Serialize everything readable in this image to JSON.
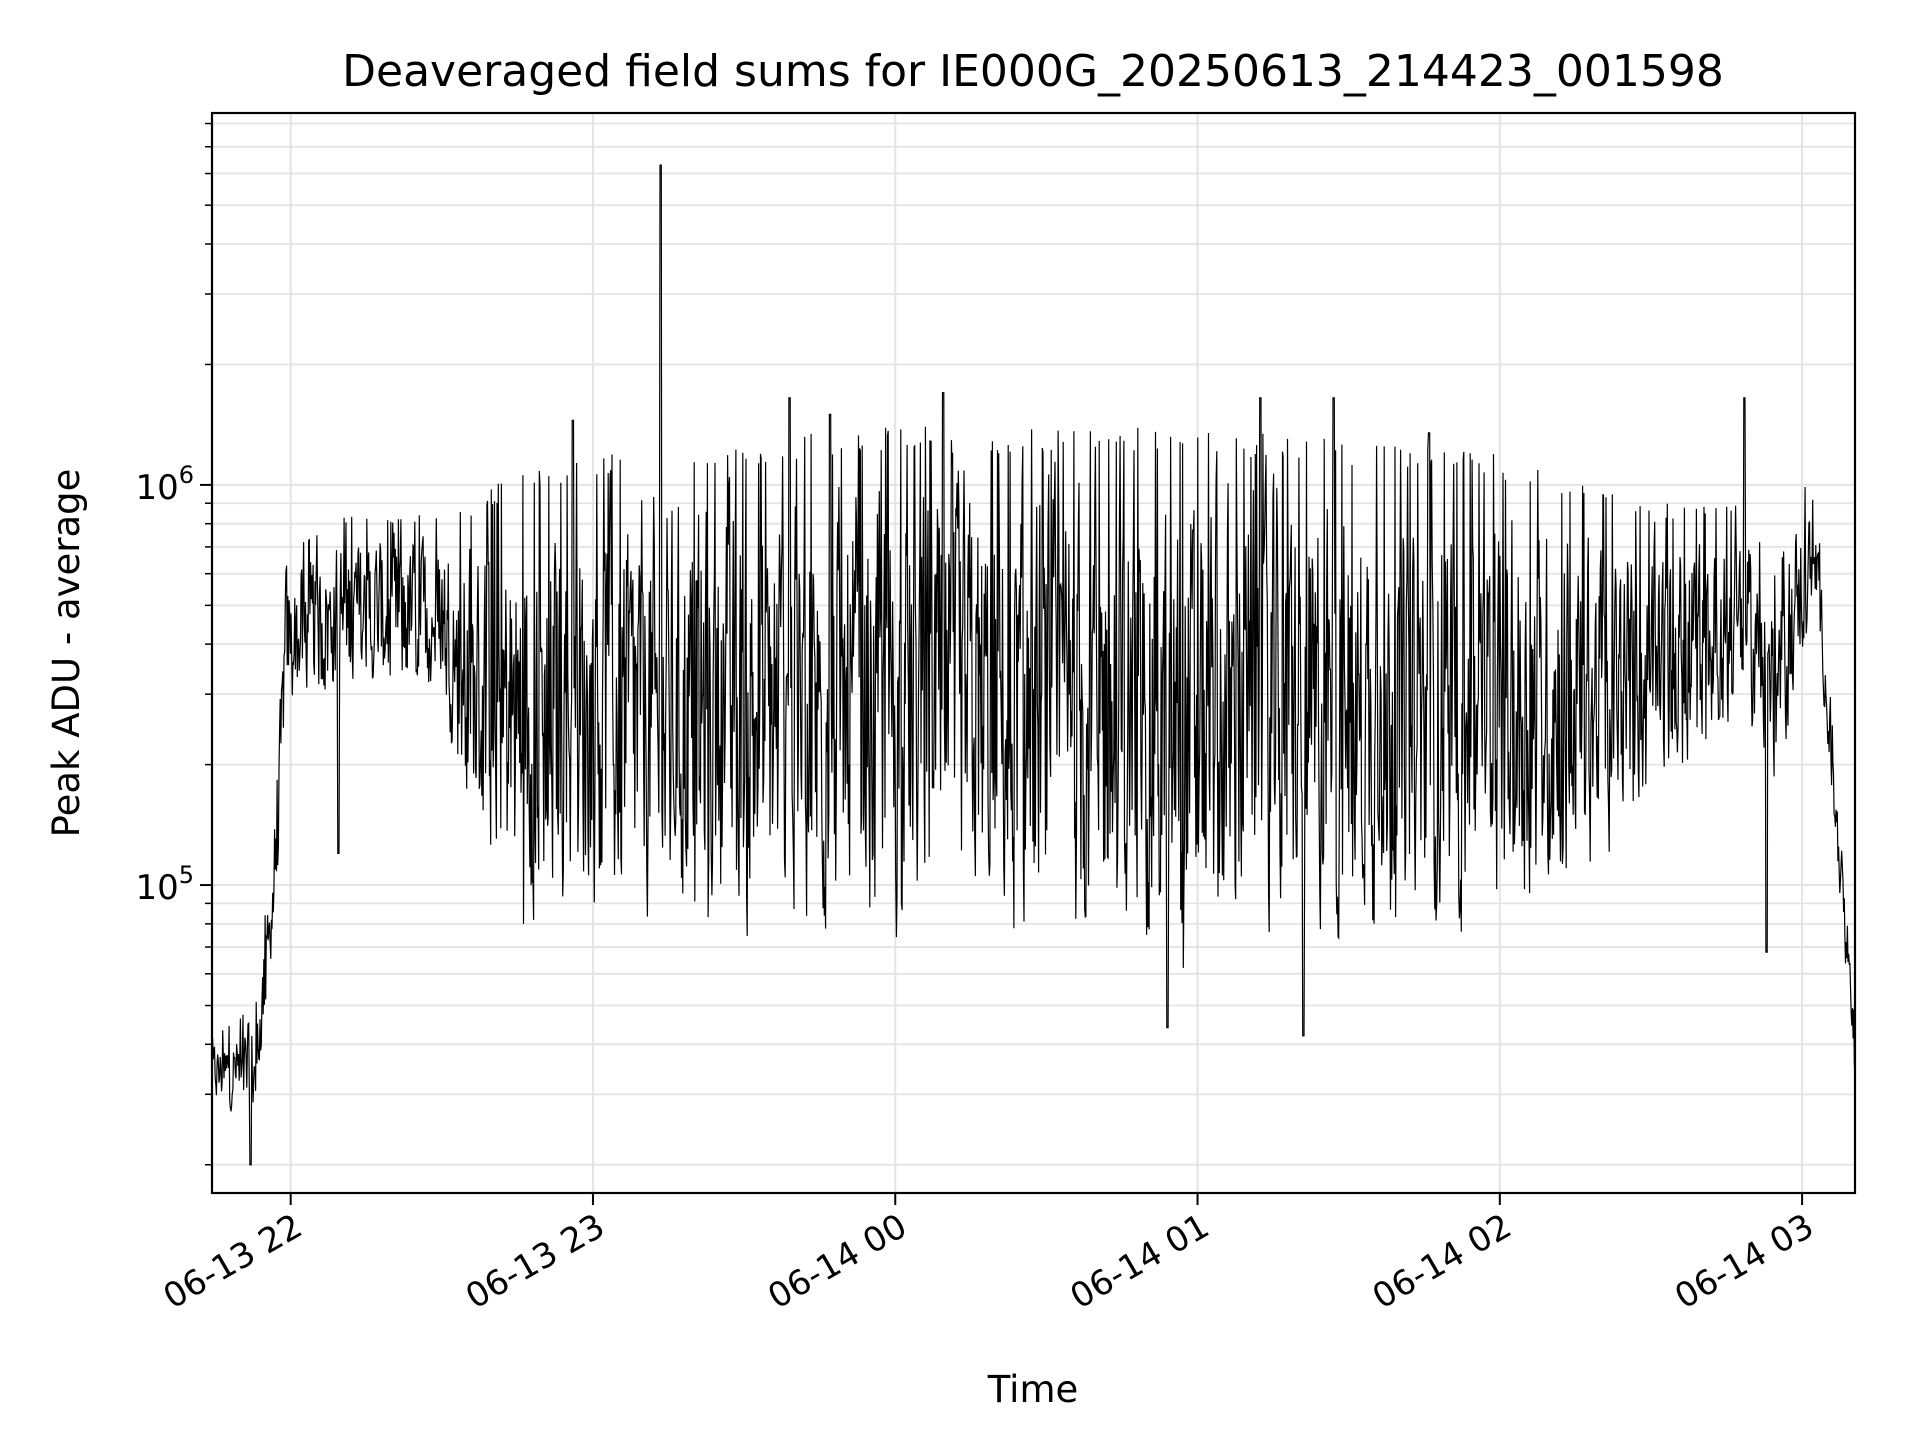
{
  "chart_data": {
    "type": "line",
    "title": "Deaveraged field sums for IE000G_20250613_214423_001598",
    "xlabel": "Time",
    "ylabel": "Peak ADU - average",
    "y_scale": "log",
    "ylim": [
      17000,
      8500000
    ],
    "xlim": [
      "2025-06-13 21:44:23",
      "2025-06-14 03:10:30"
    ],
    "grid": true,
    "line_color": "#000000",
    "grid_color": "#e4e4e4",
    "x_ticks": [
      {
        "value": "2025-06-13 22:00",
        "label": "06-13 22"
      },
      {
        "value": "2025-06-13 23:00",
        "label": "06-13 23"
      },
      {
        "value": "2025-06-14 00:00",
        "label": "06-14 00"
      },
      {
        "value": "2025-06-14 01:00",
        "label": "06-14 01"
      },
      {
        "value": "2025-06-14 02:00",
        "label": "06-14 02"
      },
      {
        "value": "2025-06-14 03:00",
        "label": "06-14 03"
      }
    ],
    "y_ticks": [
      {
        "value": 100000,
        "base": "10",
        "exp": "5"
      },
      {
        "value": 1000000,
        "base": "10",
        "exp": "6"
      }
    ],
    "series": [
      {
        "x_start": "2025-06-13 21:44:23",
        "x_end": "2025-06-14 03:10:30",
        "envelope": [
          {
            "x": "2025-06-13 21:44:23",
            "low": 28000,
            "high": 42000
          },
          {
            "x": "2025-06-13 21:53:00",
            "low": 25000,
            "high": 50000
          },
          {
            "x": "2025-06-13 21:57:00",
            "low": 80000,
            "high": 150000
          },
          {
            "x": "2025-06-13 21:59:00",
            "low": 250000,
            "high": 700000
          },
          {
            "x": "2025-06-13 22:10:00",
            "low": 280000,
            "high": 850000
          },
          {
            "x": "2025-06-13 22:30:00",
            "low": 280000,
            "high": 850000
          },
          {
            "x": "2025-06-13 22:35:00",
            "low": 120000,
            "high": 900000
          },
          {
            "x": "2025-06-13 22:45:00",
            "low": 70000,
            "high": 1100000
          },
          {
            "x": "2025-06-13 23:00:00",
            "low": 70000,
            "high": 1200000
          },
          {
            "x": "2025-06-14 00:00:00",
            "low": 60000,
            "high": 1400000
          },
          {
            "x": "2025-06-14 01:00:00",
            "low": 55000,
            "high": 1400000
          },
          {
            "x": "2025-06-14 02:00:00",
            "low": 65000,
            "high": 1200000
          },
          {
            "x": "2025-06-14 02:30:00",
            "low": 120000,
            "high": 900000
          },
          {
            "x": "2025-06-14 02:48:00",
            "low": 250000,
            "high": 900000
          },
          {
            "x": "2025-06-14 02:55:00",
            "low": 150000,
            "high": 600000
          },
          {
            "x": "2025-06-14 03:00:00",
            "low": 350000,
            "high": 1050000
          },
          {
            "x": "2025-06-14 03:03:00",
            "low": 450000,
            "high": 900000
          },
          {
            "x": "2025-06-14 03:06:00",
            "low": 150000,
            "high": 250000
          },
          {
            "x": "2025-06-14 03:10:30",
            "low": 30000,
            "high": 45000
          }
        ],
        "spikes": [
          {
            "x": "2025-06-13 23:13:30",
            "y": 6300000
          },
          {
            "x": "2025-06-14 00:09:30",
            "y": 1700000
          },
          {
            "x": "2025-06-14 01:12:30",
            "y": 1650000
          },
          {
            "x": "2025-06-14 01:27:00",
            "y": 1650000
          },
          {
            "x": "2025-06-14 02:48:30",
            "y": 1650000
          },
          {
            "x": "2025-06-13 22:56:00",
            "y": 1450000
          },
          {
            "x": "2025-06-13 23:39:00",
            "y": 1650000
          },
          {
            "x": "2025-06-13 23:47:00",
            "y": 1500000
          },
          {
            "x": "2025-06-14 01:46:00",
            "y": 1350000
          },
          {
            "x": "2025-06-13 22:09:30",
            "y": 120000
          },
          {
            "x": "2025-06-14 02:53:00",
            "y": 68000
          },
          {
            "x": "2025-06-14 00:54:00",
            "y": 44000
          },
          {
            "x": "2025-06-14 01:21:00",
            "y": 42000
          },
          {
            "x": "2025-06-13 21:52:00",
            "y": 20000
          }
        ]
      }
    ]
  }
}
